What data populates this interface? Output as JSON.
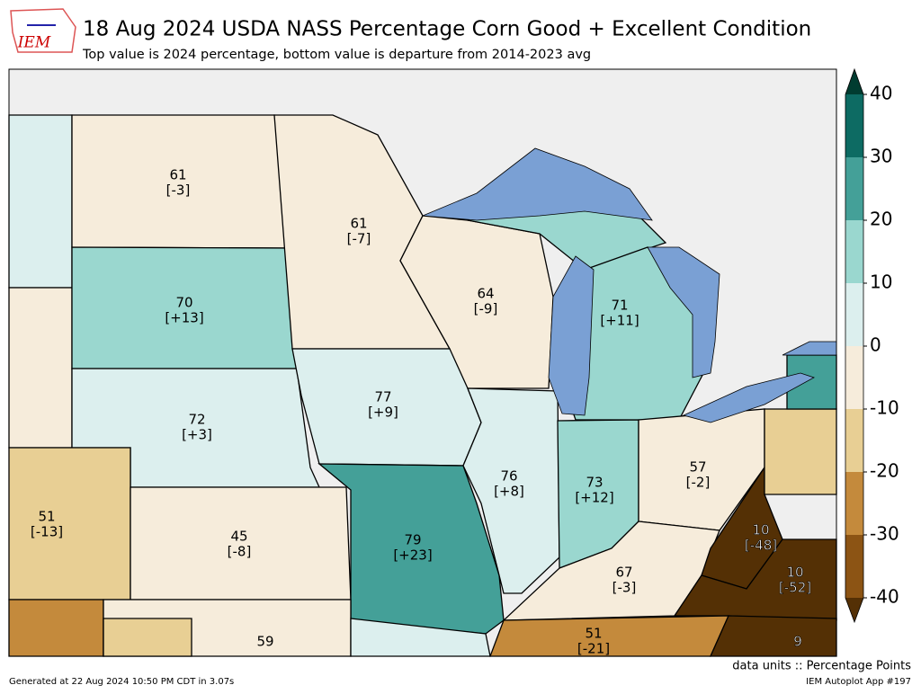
{
  "header": {
    "logo_text": "IEM",
    "title": "18 Aug 2024 USDA NASS Percentage Corn Good + Excellent Condition",
    "subtitle": "Top value is 2024 percentage, bottom value is departure from 2014-2023 avg"
  },
  "labels": [
    {
      "value": 61,
      "departure": "[-3]"
    },
    {
      "value": 61,
      "departure": "[-7]"
    },
    {
      "value": 64,
      "departure": "[-9]"
    },
    {
      "value": 71,
      "departure": "[+11]"
    },
    {
      "value": 70,
      "departure": "[+13]"
    },
    {
      "value": 77,
      "departure": "[+9]"
    },
    {
      "value": 72,
      "departure": "[+3]"
    },
    {
      "value": 76,
      "departure": "[+8]"
    },
    {
      "value": 73,
      "departure": "[+12]"
    },
    {
      "value": 57,
      "departure": "[-2]"
    },
    {
      "value": 51,
      "departure": "[-13]"
    },
    {
      "value": 45,
      "departure": "[-8]"
    },
    {
      "value": 79,
      "departure": "[+23]"
    },
    {
      "value": 10,
      "departure": "[-48]"
    },
    {
      "value": 10,
      "departure": "[-52]"
    },
    {
      "value": 67,
      "departure": "[-3]"
    },
    {
      "value": 51,
      "departure": "[-21]"
    },
    {
      "value": 59
    },
    {
      "value": 9
    }
  ],
  "colorbar": {
    "ticks": [
      40,
      30,
      20,
      10,
      0,
      -10,
      -20,
      -30,
      -40
    ],
    "colors": [
      "#0d6b63",
      "#44a098",
      "#9ad7cf",
      "#dcefee",
      "#f6ecdb",
      "#e8cf94",
      "#c48a3c",
      "#8c5414"
    ],
    "over_color": "#003c30",
    "under_color": "#543005",
    "units": "data units :: Percentage Points"
  },
  "footer": {
    "generated": "Generated at 22 Aug 2024 10:50 PM CDT in 3.07s",
    "app": "IEM Autoplot App #197"
  }
}
